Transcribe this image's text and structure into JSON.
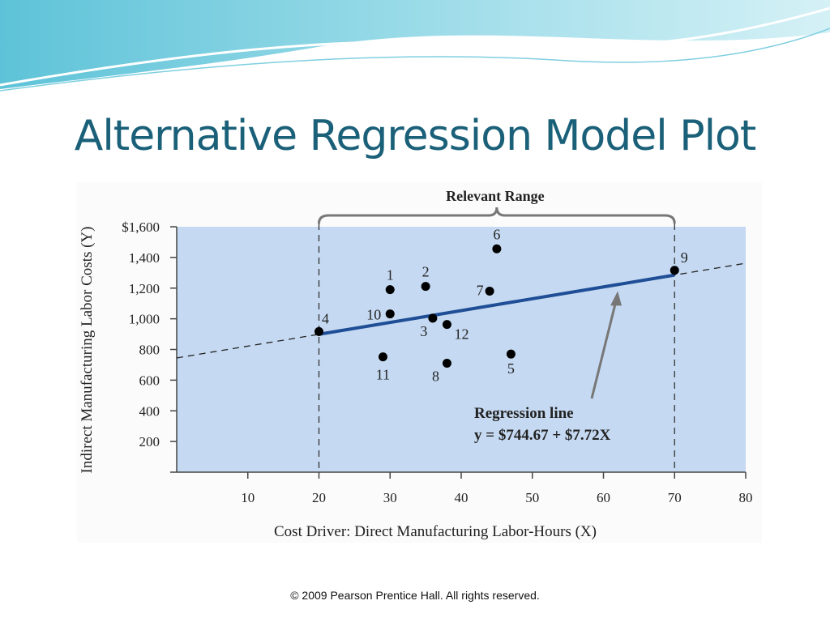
{
  "slide": {
    "title": "Alternative Regression Model Plot",
    "footer": "© 2009 Pearson Prentice Hall. All rights reserved."
  },
  "chart_data": {
    "type": "scatter",
    "xlabel": "Cost Driver: Direct Manufacturing Labor-Hours (X)",
    "ylabel": "Indirect Manufacturing Labor Costs (Y)",
    "xlim": [
      0,
      80
    ],
    "ylim": [
      0,
      1600
    ],
    "x_ticks": [
      10,
      20,
      30,
      40,
      50,
      60,
      70,
      80
    ],
    "y_ticks": [
      200,
      400,
      600,
      800,
      1000,
      1200,
      1400,
      1600
    ],
    "y_tick_labels": [
      "200",
      "400",
      "600",
      "800",
      "1,000",
      "1,200",
      "1,400",
      "$1,600"
    ],
    "grid": false,
    "plot_background": "#c5daf2",
    "points": [
      {
        "label": "1",
        "x": 30,
        "y": 1190
      },
      {
        "label": "2",
        "x": 35,
        "y": 1211
      },
      {
        "label": "3",
        "x": 36,
        "y": 1004
      },
      {
        "label": "4",
        "x": 20,
        "y": 917
      },
      {
        "label": "5",
        "x": 47,
        "y": 770
      },
      {
        "label": "6",
        "x": 45,
        "y": 1456
      },
      {
        "label": "7",
        "x": 44,
        "y": 1180
      },
      {
        "label": "8",
        "x": 38,
        "y": 710
      },
      {
        "label": "9",
        "x": 70,
        "y": 1316
      },
      {
        "label": "10",
        "x": 30,
        "y": 1032
      },
      {
        "label": "11",
        "x": 29,
        "y": 752
      },
      {
        "label": "12",
        "x": 38,
        "y": 963
      }
    ],
    "regression": {
      "intercept": 744.67,
      "slope": 7.72,
      "solid_range": [
        20,
        70
      ],
      "line_color": "#1f4e96"
    },
    "relevant_range": {
      "label": "Relevant Range",
      "from": 20,
      "to": 70
    },
    "annotation": {
      "title": "Regression line",
      "equation": "y = $744.67 + $7.72X",
      "points_to_x": 62
    }
  }
}
